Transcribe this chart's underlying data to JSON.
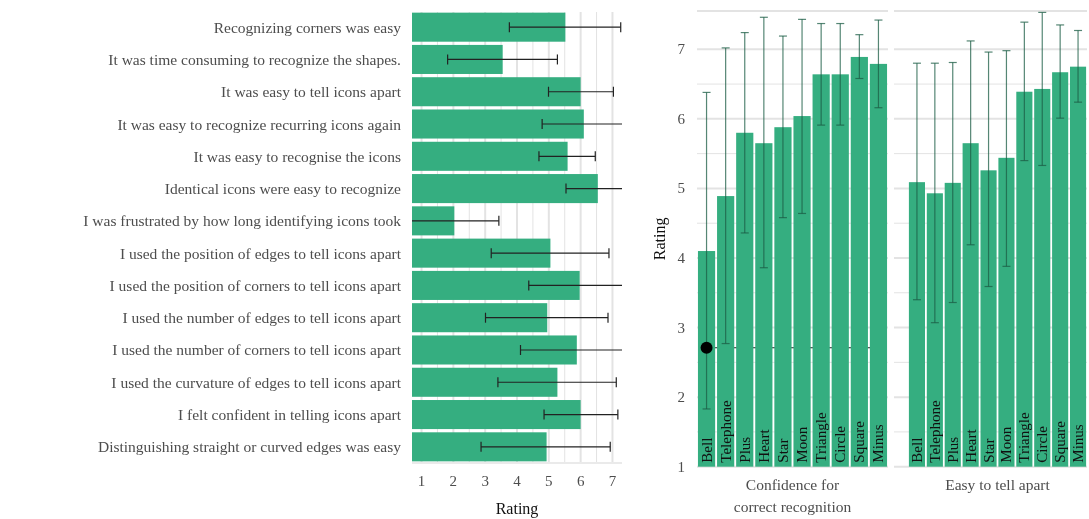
{
  "chart_data": [
    {
      "type": "bar",
      "orientation": "horizontal",
      "categories": [
        "Recognizing corners was easy",
        "It was time consuming to recognize the shapes.",
        "It was easy to tell icons apart",
        "It was easy to recognize recurring icons again",
        "It was easy to recognise the icons",
        "Identical icons were easy to recognize",
        "I was frustrated by how long identifying icons took",
        "I used the position of edges to tell icons apart",
        "I used the position of corners to tell icons apart",
        "I used the number of edges to tell icons apart",
        "I used the number of corners to tell icons apart",
        "I used the curvature of edges to tell icons apart",
        "I felt confident in telling icons apart",
        "Distinguishing straight or curved edges was easy"
      ],
      "values": [
        5.52,
        3.55,
        6.0,
        6.1,
        5.59,
        6.54,
        2.03,
        5.05,
        5.97,
        4.95,
        5.88,
        5.27,
        6.0,
        4.93
      ],
      "errors": [
        [
          3.76,
          7.26
        ],
        [
          1.82,
          5.27
        ],
        [
          4.99,
          7.03
        ],
        [
          4.79,
          7.3
        ],
        [
          4.69,
          6.46
        ],
        [
          5.54,
          7.3
        ],
        [
          0.7,
          3.43
        ],
        [
          3.19,
          6.89
        ],
        [
          4.37,
          7.3
        ],
        [
          3.01,
          6.86
        ],
        [
          4.11,
          7.3
        ],
        [
          3.4,
          7.12
        ],
        [
          4.85,
          7.17
        ],
        [
          2.87,
          6.93
        ]
      ],
      "color": "#35ae80",
      "xlim": [
        0.7,
        7.3
      ],
      "xticks": [
        1,
        2,
        3,
        4,
        5,
        6,
        7
      ],
      "xlabel": "Rating",
      "grid": "x"
    },
    {
      "type": "bar",
      "categories": [
        "Bell",
        "Telephone",
        "Plus",
        "Heart",
        "Star",
        "Moon",
        "Triangle",
        "Circle",
        "Square",
        "Minus"
      ],
      "series": [
        {
          "type": "bar",
          "color": "#35ae80",
          "values": [
            4.1,
            4.89,
            5.8,
            5.65,
            5.88,
            6.04,
            6.64,
            6.64,
            6.89,
            6.79
          ],
          "errors": [
            [
              1.83,
              6.38
            ],
            [
              2.77,
              7.02
            ],
            [
              4.36,
              7.24
            ],
            [
              3.86,
              7.46
            ],
            [
              4.58,
              7.19
            ],
            [
              4.64,
              7.43
            ],
            [
              5.91,
              7.37
            ],
            [
              5.91,
              7.37
            ],
            [
              6.58,
              7.21
            ],
            [
              6.16,
              7.42
            ]
          ]
        },
        {
          "type": "scatter",
          "x": [
            "Bell"
          ],
          "values": [
            2.71
          ],
          "color": "#000000"
        }
      ],
      "ref_lines": [
        {
          "axis": "y",
          "value": 2.71,
          "color": "#222222"
        }
      ],
      "ylim": [
        1,
        7.55
      ],
      "yticks": [
        1,
        2,
        3,
        4,
        5,
        6,
        7
      ],
      "ylabel": "Rating",
      "xlabel": "Confidence for\ncorrect recognition",
      "grid": "y"
    },
    {
      "type": "bar",
      "categories": [
        "Bell",
        "Telephone",
        "Plus",
        "Heart",
        "Star",
        "Moon",
        "Triangle",
        "Circle",
        "Square",
        "Minus"
      ],
      "series": [
        {
          "type": "bar",
          "color": "#35ae80",
          "values": [
            5.09,
            4.93,
            5.08,
            5.65,
            5.26,
            5.44,
            6.39,
            6.43,
            6.67,
            6.75
          ],
          "errors": [
            [
              3.4,
              6.8
            ],
            [
              3.07,
              6.8
            ],
            [
              3.36,
              6.81
            ],
            [
              4.19,
              7.12
            ],
            [
              3.59,
              6.96
            ],
            [
              3.88,
              6.98
            ],
            [
              5.4,
              7.39
            ],
            [
              5.33,
              7.53
            ],
            [
              6.01,
              7.35
            ],
            [
              6.24,
              7.27
            ]
          ]
        }
      ],
      "ylim": [
        1,
        7.55
      ],
      "yticks": [
        1,
        2,
        3,
        4,
        5,
        6,
        7
      ],
      "xlabel": "Easy to tell apart",
      "grid": "y",
      "tick_labels": "x"
    }
  ]
}
